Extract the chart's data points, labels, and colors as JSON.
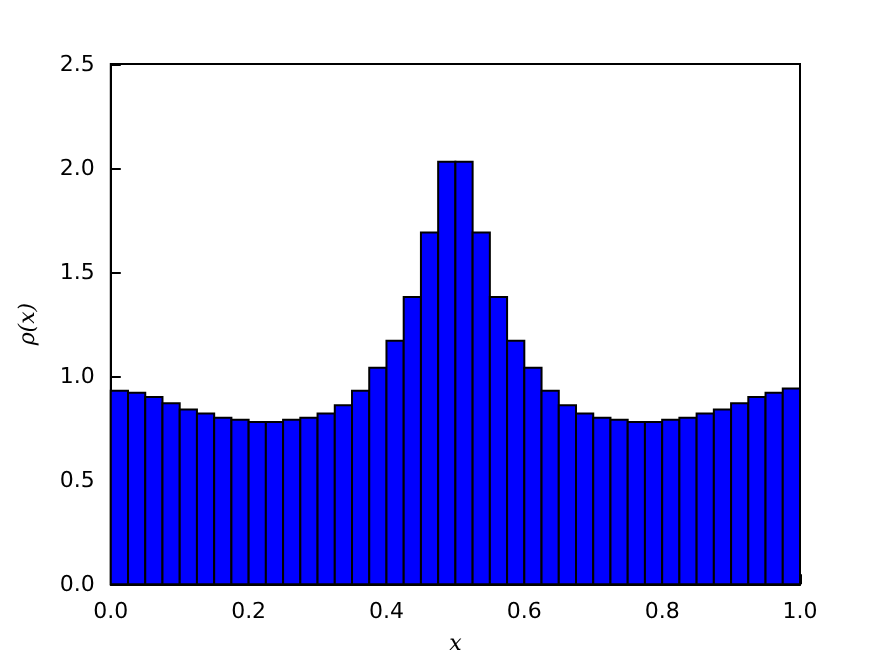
{
  "chart_data": {
    "type": "histogram",
    "xlabel": "x",
    "ylabel": "ρ(x)",
    "color": "#0000ff",
    "bins": [
      0,
      0.025,
      0.05,
      0.075,
      0.1,
      0.125,
      0.15,
      0.175,
      0.2,
      0.225,
      0.25,
      0.275,
      0.3,
      0.325,
      0.35,
      0.375,
      0.4,
      0.425,
      0.45,
      0.475,
      0.5,
      0.525,
      0.55,
      0.575,
      0.6,
      0.625,
      0.65,
      0.675,
      0.7,
      0.725,
      0.75,
      0.775,
      0.8,
      0.825,
      0.85,
      0.875,
      0.9,
      0.925,
      0.95,
      0.975,
      1
    ],
    "values": [
      0.93,
      0.92,
      0.9,
      0.87,
      0.84,
      0.82,
      0.8,
      0.79,
      0.78,
      0.78,
      0.79,
      0.8,
      0.82,
      0.86,
      0.93,
      1.04,
      1.17,
      1.38,
      1.69,
      2.03,
      2.03,
      1.69,
      1.38,
      1.17,
      1.04,
      0.93,
      0.86,
      0.82,
      0.8,
      0.79,
      0.78,
      0.78,
      0.79,
      0.8,
      0.82,
      0.84,
      0.87,
      0.9,
      0.92,
      0.94
    ],
    "xlim": [
      0,
      1
    ],
    "ylim": [
      0,
      2.5
    ],
    "xticks": [
      {
        "value": 0,
        "label": "0.0"
      },
      0.2,
      0.4,
      0.6,
      0.8,
      {
        "value": 1,
        "label": "1.0"
      }
    ],
    "yticks": [
      {
        "value": 0,
        "label": "0.0"
      },
      0.5,
      {
        "value": 1,
        "label": "1.0"
      },
      1.5,
      {
        "value": 2,
        "label": "2.0"
      },
      2.5
    ],
    "grid": false
  }
}
